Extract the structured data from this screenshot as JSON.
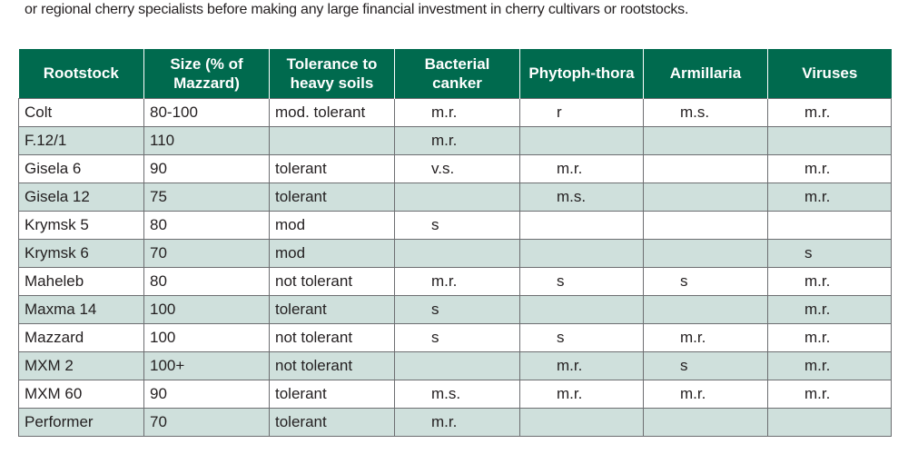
{
  "intro_text": "or regional cherry specialists before making any large financial investment in cherry cultivars or rootstocks.",
  "colors": {
    "header": "#006a4e",
    "alt_row": "#cfe0dc"
  },
  "table": {
    "headers": [
      "Rootstock",
      "Size (% of Mazzard)",
      "Tolerance to heavy soils",
      "Bacterial canker",
      "Phytoph-thora",
      "Armillaria",
      "Viruses"
    ],
    "rows": [
      [
        "Colt",
        "80-100",
        "mod. tolerant",
        "m.r.",
        "r",
        "m.s.",
        "m.r."
      ],
      [
        "F.12/1",
        "110",
        "",
        "m.r.",
        "",
        "",
        ""
      ],
      [
        "Gisela 6",
        "90",
        "tolerant",
        "v.s.",
        "m.r.",
        "",
        "m.r."
      ],
      [
        "Gisela 12",
        "75",
        "tolerant",
        "",
        "m.s.",
        "",
        "m.r."
      ],
      [
        "Krymsk 5",
        "80",
        "mod",
        "s",
        "",
        "",
        ""
      ],
      [
        "Krymsk 6",
        "70",
        "mod",
        "",
        "",
        "",
        "s"
      ],
      [
        "Maheleb",
        "80",
        "not tolerant",
        "m.r.",
        "s",
        "s",
        "m.r."
      ],
      [
        "Maxma 14",
        "100",
        "tolerant",
        "s",
        "",
        "",
        "m.r."
      ],
      [
        "Mazzard",
        "100",
        "not tolerant",
        "s",
        "s",
        "m.r.",
        "m.r."
      ],
      [
        "MXM 2",
        "100+",
        "not tolerant",
        "",
        "m.r.",
        "s",
        "m.r."
      ],
      [
        "MXM 60",
        "90",
        "tolerant",
        "m.s.",
        "m.r.",
        "m.r.",
        "m.r."
      ],
      [
        "Performer",
        "70",
        "tolerant",
        "m.r.",
        "",
        "",
        ""
      ]
    ]
  }
}
